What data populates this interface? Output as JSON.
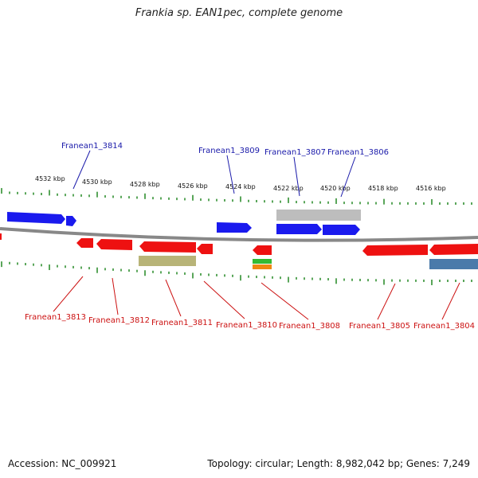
{
  "title": "Frankia sp. EAN1pec, complete genome",
  "footer": {
    "accession": "Accession: NC_009921",
    "summary": "Topology: circular; Length: 8,982,042 bp; Genes: 7,249"
  },
  "colors": {
    "forward": "#1a1aee",
    "reverse": "#ee1111",
    "gray": "#bdbdbd",
    "olive": "#b8b478",
    "green": "#33bb33",
    "orange": "#ee8811",
    "steel": "#4a7aaa",
    "tick": "#228822",
    "backbone": "#888888",
    "label_forward": "#1a1aaa",
    "label_reverse": "#cc1111"
  },
  "scale_labels": [
    "4532 kbp",
    "4530 kbp",
    "4528 kbp",
    "4526 kbp",
    "4524 kbp",
    "4522 kbp",
    "4520 kbp",
    "4518 kbp",
    "4516 kbp"
  ],
  "forward_labels": [
    "Franean1_3814",
    "Franean1_3809",
    "Franean1_3807",
    "Franean1_3806"
  ],
  "reverse_labels": [
    "Franean1_3813",
    "Franean1_3812",
    "Franean1_3811",
    "Franean1_3810",
    "Franean1_3808",
    "Franean1_3805",
    "Franean1_3804"
  ]
}
